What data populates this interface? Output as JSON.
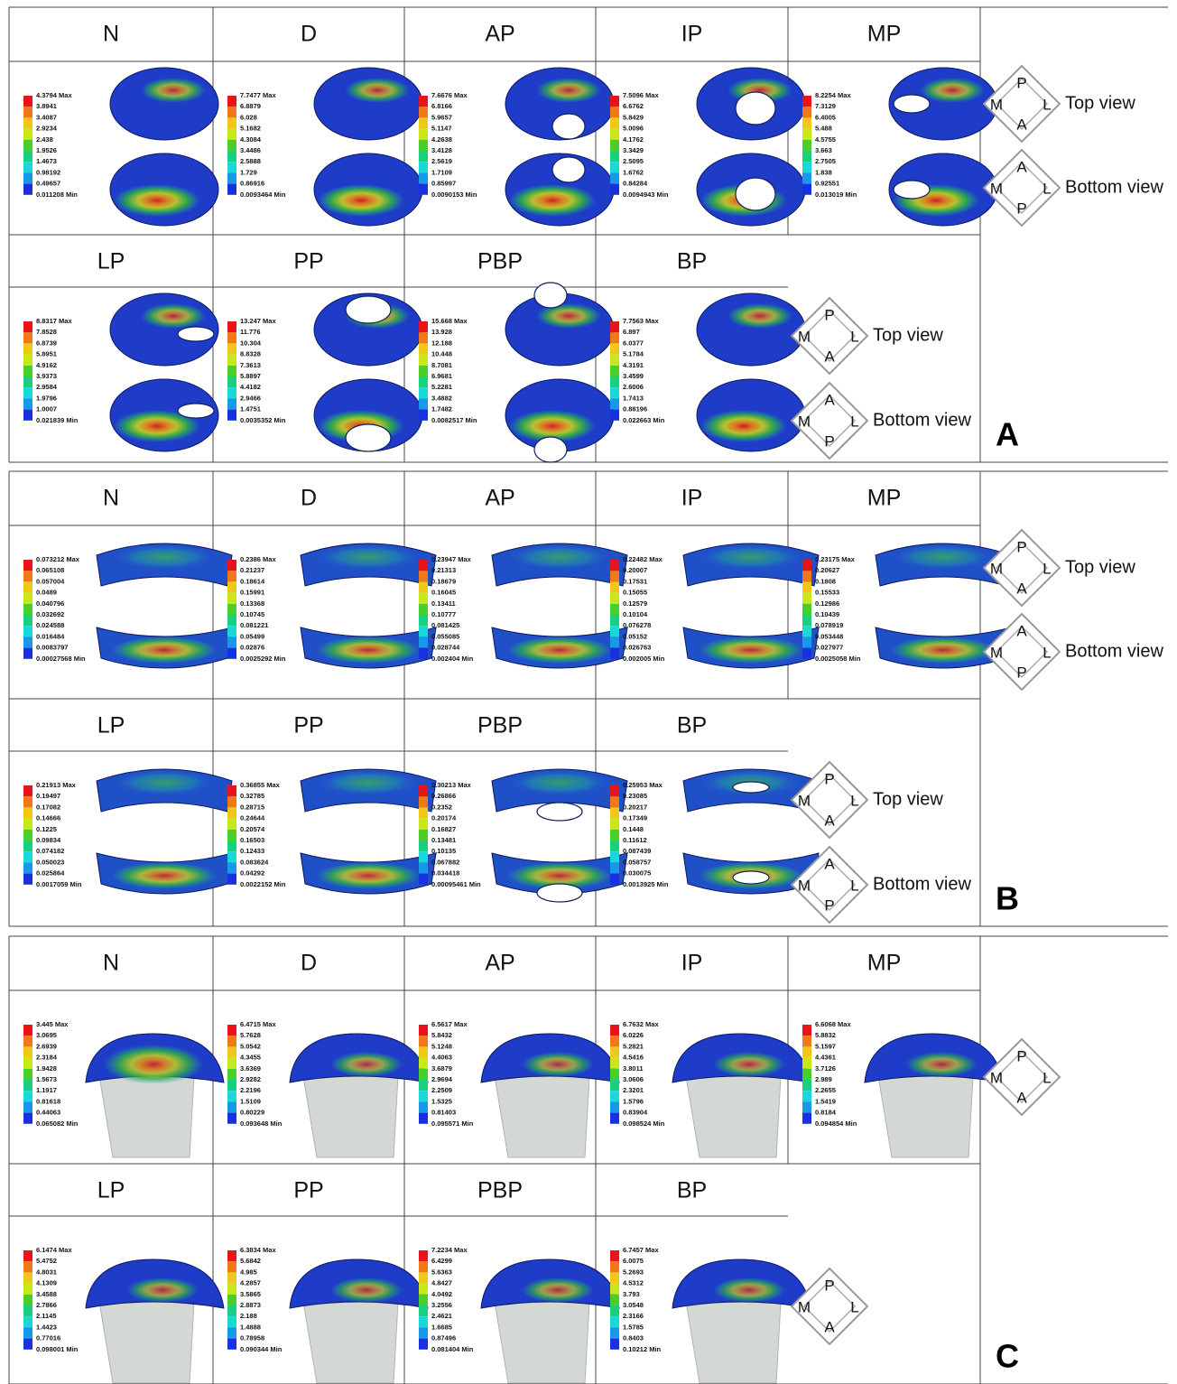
{
  "sections": [
    {
      "label": "A",
      "panels": [
        {
          "title": "N",
          "legend": [
            "4.3794 Max",
            "3.8941",
            "3.4087",
            "2.9234",
            "2.438",
            "1.9526",
            "1.4673",
            "0.98192",
            "0.49657",
            "0.011208 Min"
          ]
        },
        {
          "title": "D",
          "legend": [
            "7.7477 Max",
            "6.8879",
            "6.028",
            "5.1682",
            "4.3084",
            "3.4486",
            "2.5888",
            "1.729",
            "0.86916",
            "0.0093464 Min"
          ]
        },
        {
          "title": "AP",
          "legend": [
            "7.6676 Max",
            "6.8166",
            "5.9657",
            "5.1147",
            "4.2638",
            "3.4128",
            "2.5619",
            "1.7109",
            "0.85997",
            "0.0090153 Min"
          ]
        },
        {
          "title": "IP",
          "legend": [
            "7.5096 Max",
            "6.6762",
            "5.8429",
            "5.0096",
            "4.1762",
            "3.3429",
            "2.5095",
            "1.6762",
            "0.84284",
            "0.0094943 Min"
          ]
        },
        {
          "title": "MP",
          "legend": [
            "8.2254 Max",
            "7.3129",
            "6.4005",
            "5.488",
            "4.5755",
            "3.663",
            "2.7505",
            "1.838",
            "0.92551",
            "0.013019 Min"
          ]
        },
        {
          "title": "LP",
          "legend": [
            "8.8317 Max",
            "7.8528",
            "6.8739",
            "5.8951",
            "4.9162",
            "3.9373",
            "2.9584",
            "1.9796",
            "1.0007",
            "0.021839 Min"
          ]
        },
        {
          "title": "PP",
          "legend": [
            "13.247 Max",
            "11.776",
            "10.304",
            "8.8328",
            "7.3613",
            "5.8897",
            "4.4182",
            "2.9466",
            "1.4751",
            "0.0035352 Min"
          ]
        },
        {
          "title": "PBP",
          "legend": [
            "15.668 Max",
            "13.928",
            "12.188",
            "10.448",
            "8.7081",
            "6.9681",
            "5.2281",
            "3.4882",
            "1.7482",
            "0.0082517 Min"
          ]
        },
        {
          "title": "BP",
          "legend": [
            "7.7563 Max",
            "6.897",
            "6.0377",
            "5.1784",
            "4.3191",
            "3.4599",
            "2.6006",
            "1.7413",
            "0.88196",
            "0.022663 Min"
          ]
        }
      ],
      "compasses": [
        {
          "top": "P",
          "left": "M",
          "right": "L",
          "bottom": "A",
          "view": "Top view"
        },
        {
          "top": "A",
          "left": "M",
          "right": "L",
          "bottom": "P",
          "view": "Bottom view"
        },
        {
          "top": "P",
          "left": "M",
          "right": "L",
          "bottom": "A",
          "view": "Top view"
        },
        {
          "top": "A",
          "left": "M",
          "right": "L",
          "bottom": "P",
          "view": "Bottom view"
        }
      ]
    },
    {
      "label": "B",
      "panels": [
        {
          "title": "N",
          "legend": [
            "0.073212 Max",
            "0.065108",
            "0.057004",
            "0.0489",
            "0.040796",
            "0.032692",
            "0.024588",
            "0.016484",
            "0.0083797",
            "0.00027568 Min"
          ]
        },
        {
          "title": "D",
          "legend": [
            "0.2386 Max",
            "0.21237",
            "0.18614",
            "0.15991",
            "0.13368",
            "0.10745",
            "0.081221",
            "0.05499",
            "0.02876",
            "0.0025292 Min"
          ]
        },
        {
          "title": "AP",
          "legend": [
            "0.23947 Max",
            "0.21313",
            "0.18679",
            "0.16045",
            "0.13411",
            "0.10777",
            "0.081425",
            "0.055085",
            "0.028744",
            "0.002404 Min"
          ]
        },
        {
          "title": "IP",
          "legend": [
            "0.22482 Max",
            "0.20007",
            "0.17531",
            "0.15055",
            "0.12579",
            "0.10104",
            "0.076278",
            "0.05152",
            "0.026763",
            "0.002005 Min"
          ]
        },
        {
          "title": "MP",
          "legend": [
            "0.23175 Max",
            "0.20627",
            "0.1808",
            "0.15533",
            "0.12986",
            "0.10439",
            "0.078919",
            "0.053448",
            "0.027977",
            "0.0025058 Min"
          ]
        },
        {
          "title": "LP",
          "legend": [
            "0.21913 Max",
            "0.19497",
            "0.17082",
            "0.14666",
            "0.1225",
            "0.09834",
            "0.074182",
            "0.050023",
            "0.025864",
            "0.0017059 Min"
          ]
        },
        {
          "title": "PP",
          "legend": [
            "0.36855 Max",
            "0.32785",
            "0.28715",
            "0.24644",
            "0.20574",
            "0.16503",
            "0.12433",
            "0.083624",
            "0.04292",
            "0.0022152 Min"
          ]
        },
        {
          "title": "PBP",
          "legend": [
            "0.30213 Max",
            "0.26866",
            "0.2352",
            "0.20174",
            "0.16827",
            "0.13481",
            "0.10135",
            "0.067882",
            "0.034418",
            "0.00095461 Min"
          ]
        },
        {
          "title": "BP",
          "legend": [
            "0.25953 Max",
            "0.23085",
            "0.20217",
            "0.17349",
            "0.1448",
            "0.11612",
            "0.087439",
            "0.058757",
            "0.030075",
            "0.0013925 Min"
          ]
        }
      ],
      "compasses": [
        {
          "top": "P",
          "left": "M",
          "right": "L",
          "bottom": "A",
          "view": "Top view"
        },
        {
          "top": "A",
          "left": "M",
          "right": "L",
          "bottom": "P",
          "view": "Bottom view"
        },
        {
          "top": "P",
          "left": "M",
          "right": "L",
          "bottom": "A",
          "view": "Top view"
        },
        {
          "top": "A",
          "left": "M",
          "right": "L",
          "bottom": "P",
          "view": "Bottom view"
        }
      ]
    },
    {
      "label": "C",
      "panels": [
        {
          "title": "N",
          "legend": [
            "3.445 Max",
            "3.0695",
            "2.6939",
            "2.3184",
            "1.9428",
            "1.5673",
            "1.1917",
            "0.81618",
            "0.44063",
            "0.065082 Min"
          ]
        },
        {
          "title": "D",
          "legend": [
            "6.4715 Max",
            "5.7628",
            "5.0542",
            "4.3455",
            "3.6369",
            "2.9282",
            "2.2196",
            "1.5109",
            "0.80229",
            "0.093648 Min"
          ]
        },
        {
          "title": "AP",
          "legend": [
            "6.5617 Max",
            "5.8432",
            "5.1248",
            "4.4063",
            "3.6879",
            "2.9694",
            "2.2509",
            "1.5325",
            "0.81403",
            "0.095571 Min"
          ]
        },
        {
          "title": "IP",
          "legend": [
            "6.7632 Max",
            "6.0226",
            "5.2821",
            "4.5416",
            "3.8011",
            "3.0606",
            "2.3201",
            "1.5796",
            "0.83904",
            "0.098524 Min"
          ]
        },
        {
          "title": "MP",
          "legend": [
            "6.6068 Max",
            "5.8832",
            "5.1597",
            "4.4361",
            "3.7126",
            "2.989",
            "2.2655",
            "1.5419",
            "0.8184",
            "0.094854 Min"
          ]
        },
        {
          "title": "LP",
          "legend": [
            "6.1474 Max",
            "5.4752",
            "4.8031",
            "4.1309",
            "3.4588",
            "2.7866",
            "2.1145",
            "1.4423",
            "0.77016",
            "0.098001 Min"
          ]
        },
        {
          "title": "PP",
          "legend": [
            "6.3834 Max",
            "5.6842",
            "4.985",
            "4.2857",
            "3.5865",
            "2.8873",
            "2.188",
            "1.4888",
            "0.78958",
            "0.090344 Min"
          ]
        },
        {
          "title": "PBP",
          "legend": [
            "7.2234 Max",
            "6.4299",
            "5.6363",
            "4.8427",
            "4.0492",
            "3.2556",
            "2.4621",
            "1.6685",
            "0.87496",
            "0.081404 Min"
          ]
        },
        {
          "title": "BP",
          "legend": [
            "6.7457 Max",
            "6.0075",
            "5.2693",
            "4.5312",
            "3.793",
            "3.0548",
            "2.3166",
            "1.5785",
            "0.8403",
            "0.10212 Min"
          ]
        }
      ],
      "compasses": [
        {
          "top": "P",
          "left": "M",
          "right": "L",
          "bottom": "A"
        },
        {
          "top": "P",
          "left": "M",
          "right": "L",
          "bottom": "A"
        }
      ]
    }
  ]
}
